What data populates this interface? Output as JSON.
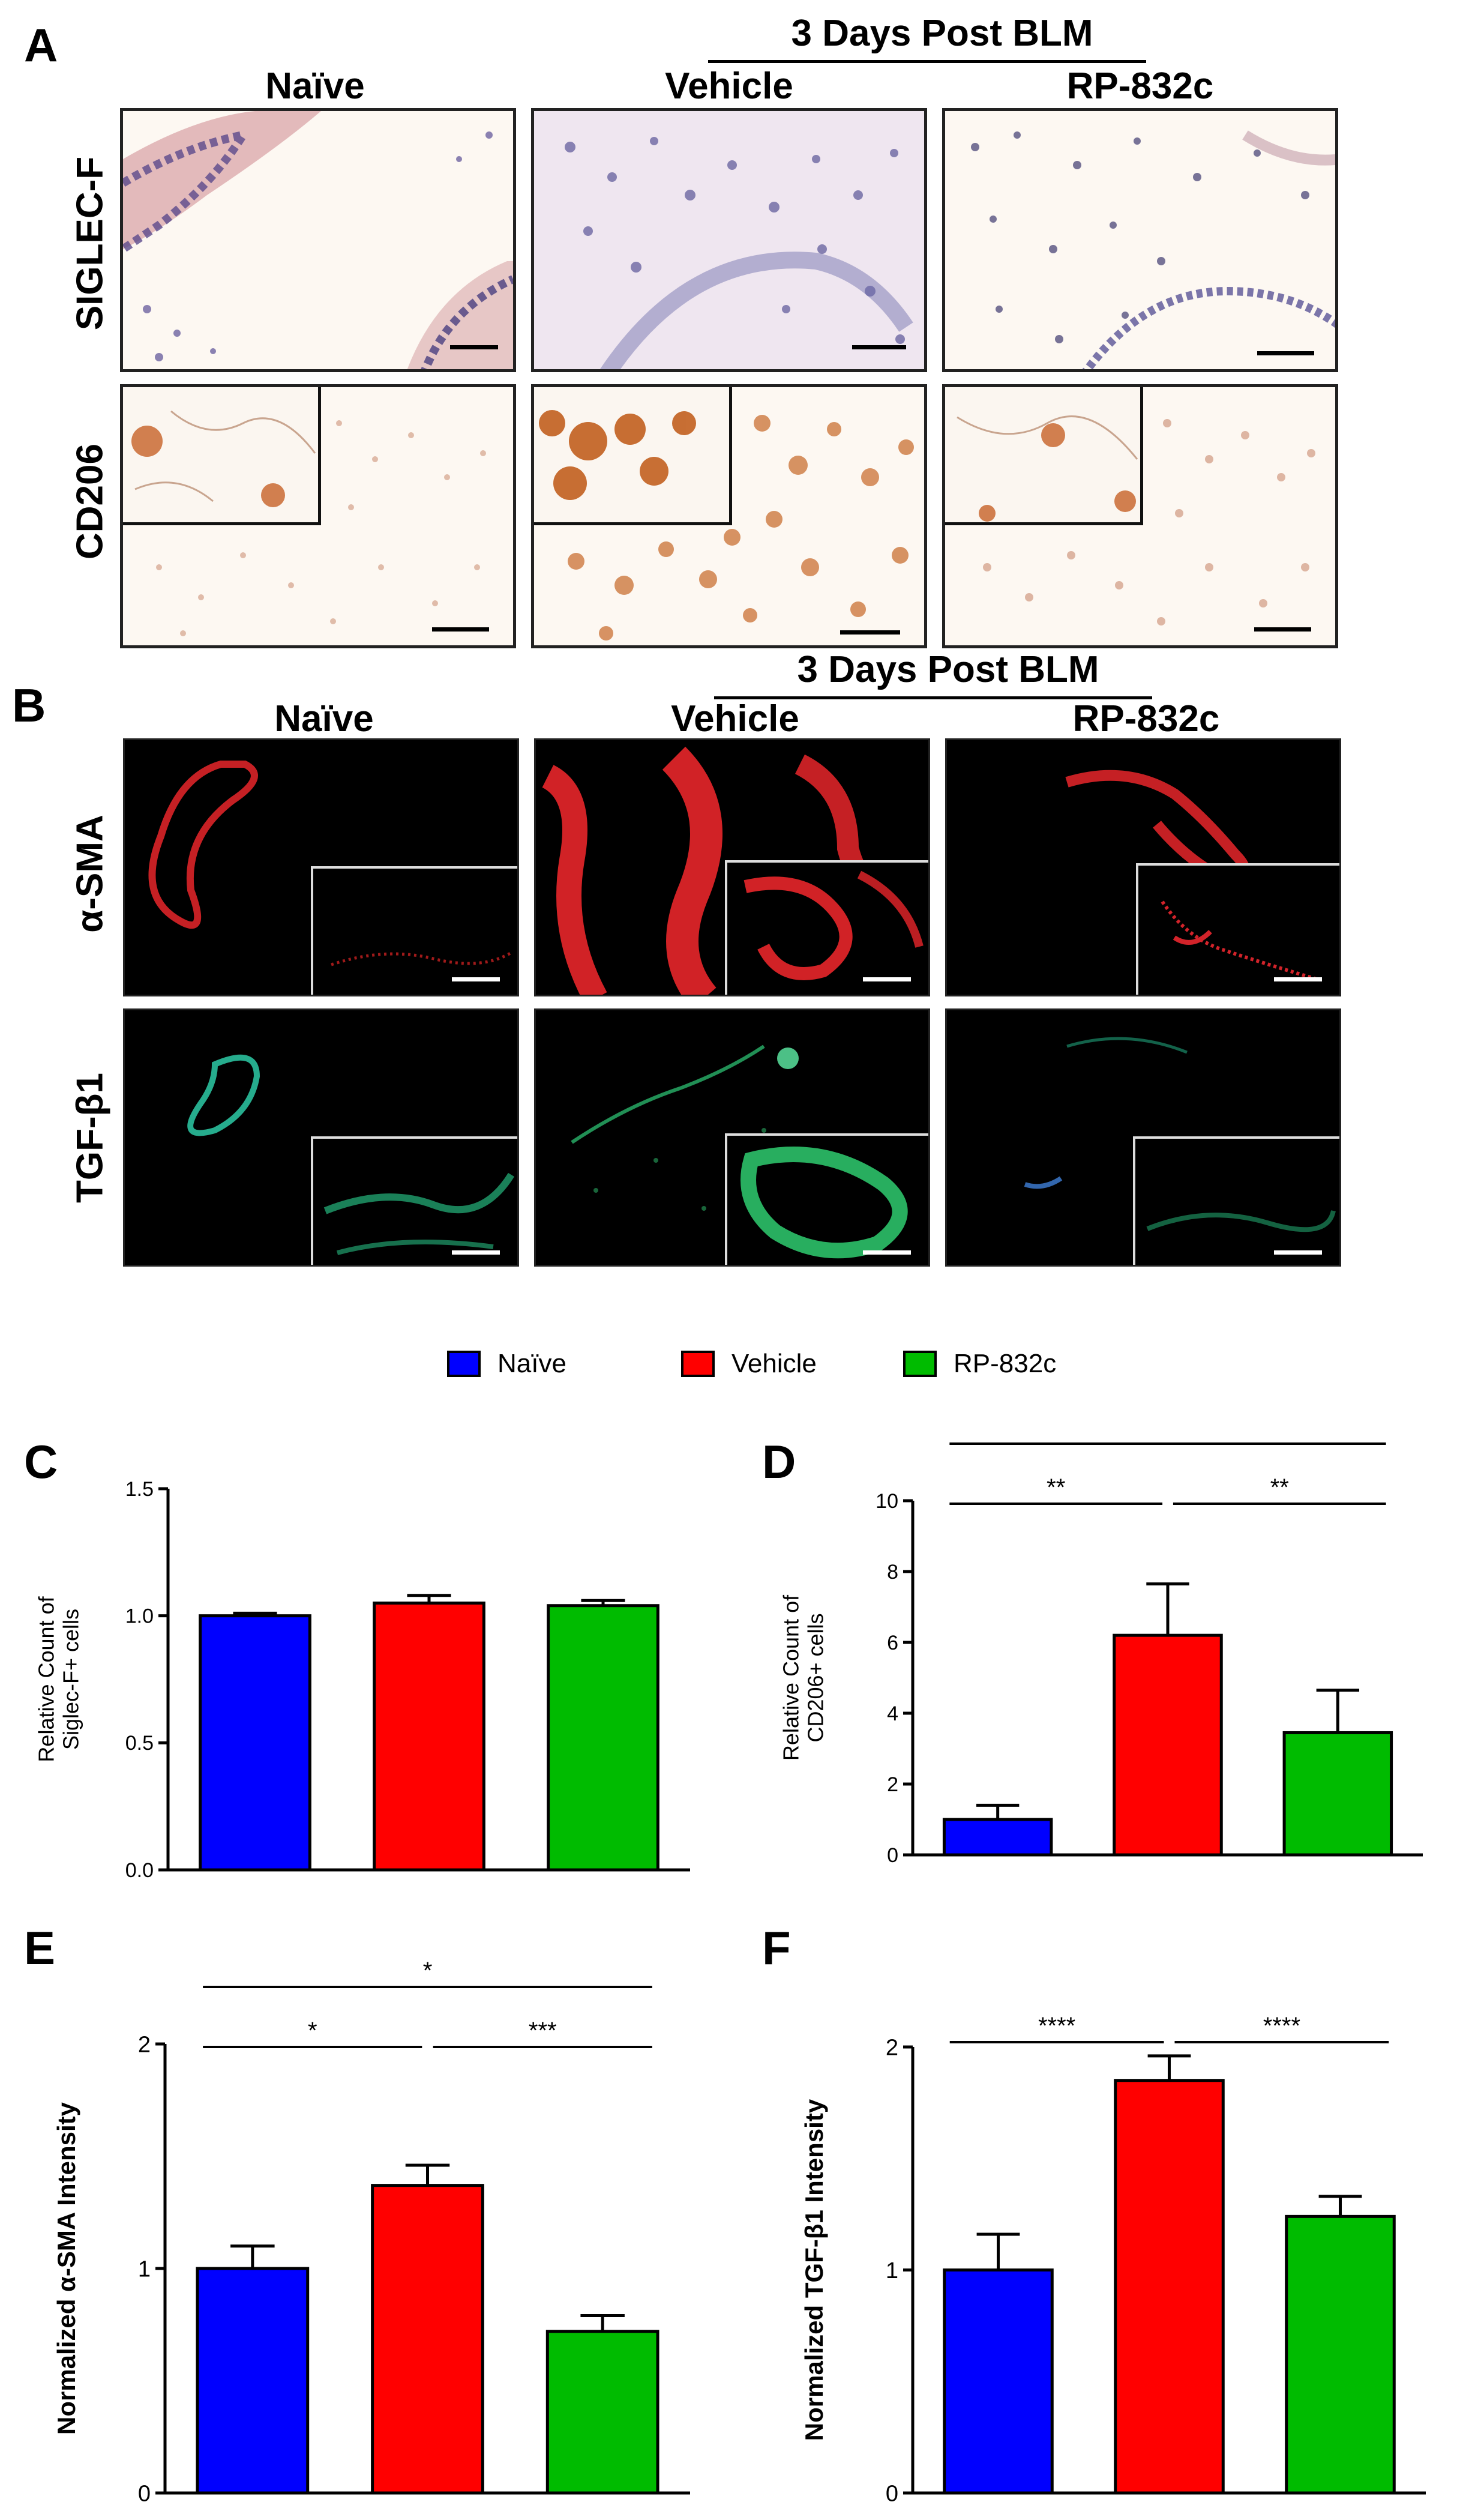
{
  "panel_letters": {
    "A": "A",
    "B": "B",
    "C": "C",
    "D": "D",
    "E": "E",
    "F": "F"
  },
  "panel_A": {
    "group_header": "3 Days Post BLM",
    "columns": [
      "Naïve",
      "Vehicle",
      "RP-832c"
    ],
    "rows": [
      "SIGLEC-F",
      "CD206"
    ]
  },
  "panel_B": {
    "group_header": "3 Days Post BLM",
    "columns": [
      "Naïve",
      "Vehicle",
      "RP-832c"
    ],
    "rows": [
      "α-SMA",
      "TGF-β1"
    ]
  },
  "legend": [
    {
      "label": "Naïve",
      "color": "#0000ff"
    },
    {
      "label": "Vehicle",
      "color": "#ff0000"
    },
    {
      "label": "RP-832c",
      "color": "#00bb00"
    }
  ],
  "chart_data": [
    {
      "id": "C",
      "type": "bar",
      "categories": [
        "Naïve",
        "Vehicle",
        "RP-832c"
      ],
      "values": [
        1.0,
        1.05,
        1.04
      ],
      "errors": [
        0.01,
        0.03,
        0.02
      ],
      "colors": [
        "#0000ff",
        "#ff0000",
        "#00bb00"
      ],
      "ylabel_lines": [
        "Relative Count of",
        "Siglec-F+ cells"
      ],
      "ylim": [
        0,
        1.5
      ],
      "yticks": [
        "0.0",
        "0.5",
        "1.0",
        "1.5"
      ],
      "significance": []
    },
    {
      "id": "D",
      "type": "bar",
      "categories": [
        "Naïve",
        "Vehicle",
        "RP-832c"
      ],
      "values": [
        1.0,
        6.2,
        3.45
      ],
      "errors": [
        0.4,
        1.45,
        1.2
      ],
      "colors": [
        "#0000ff",
        "#ff0000",
        "#00bb00"
      ],
      "ylabel_lines": [
        "Relative Count of",
        "CD206+ cells"
      ],
      "ylim": [
        0,
        10
      ],
      "yticks": [
        "0",
        "2",
        "4",
        "6",
        "8",
        "10"
      ],
      "significance": [
        {
          "from": 0,
          "to": 2,
          "label": "*",
          "level": 2
        },
        {
          "from": 0,
          "to": 1,
          "label": "**",
          "level": 1
        },
        {
          "from": 1,
          "to": 2,
          "label": "**",
          "level": 1
        }
      ]
    },
    {
      "id": "E",
      "type": "bar",
      "categories": [
        "Naïve",
        "Vehicle",
        "RP-832c"
      ],
      "values": [
        1.0,
        1.37,
        0.72
      ],
      "errors": [
        0.1,
        0.09,
        0.07
      ],
      "colors": [
        "#0000ff",
        "#ff0000",
        "#00bb00"
      ],
      "ylabel_lines": [
        "Normalized α-SMA Intensity"
      ],
      "ylim": [
        0,
        2
      ],
      "yticks": [
        "0",
        "1",
        "2"
      ],
      "significance": [
        {
          "from": 0,
          "to": 2,
          "label": "*",
          "level": 2
        },
        {
          "from": 0,
          "to": 1,
          "label": "*",
          "level": 1
        },
        {
          "from": 1,
          "to": 2,
          "label": "***",
          "level": 1
        }
      ]
    },
    {
      "id": "F",
      "type": "bar",
      "categories": [
        "Naïve",
        "Vehicle",
        "RP-832c"
      ],
      "values": [
        1.0,
        1.85,
        1.24
      ],
      "errors": [
        0.16,
        0.11,
        0.09
      ],
      "colors": [
        "#0000ff",
        "#ff0000",
        "#00bb00"
      ],
      "ylabel_lines": [
        "Normalized TGF-β1 Intensity"
      ],
      "ylim": [
        0,
        2
      ],
      "yticks": [
        "0",
        "1",
        "2"
      ],
      "significance": [
        {
          "from": 0,
          "to": 1,
          "label": "****",
          "level": 1
        },
        {
          "from": 1,
          "to": 2,
          "label": "****",
          "level": 1
        }
      ]
    }
  ]
}
